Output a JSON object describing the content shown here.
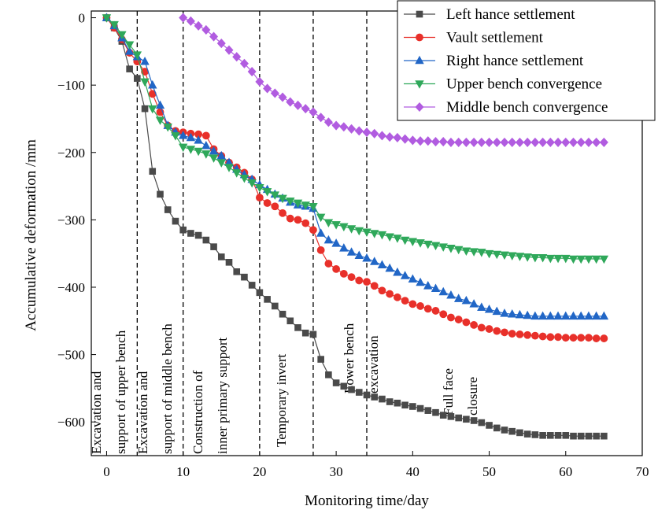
{
  "chart_data": {
    "type": "line",
    "xlabel": "Monitoring time/day",
    "ylabel": "Accumulative deformation /mm",
    "xlim": [
      -2,
      70
    ],
    "ylim": [
      -650,
      10
    ],
    "xticks": [
      0,
      10,
      20,
      30,
      40,
      50,
      60,
      70
    ],
    "yticks": [
      0,
      -100,
      -200,
      -300,
      -400,
      -500,
      -600
    ],
    "legend_position": "top-right",
    "phase_lines_x": [
      4,
      10,
      20,
      27,
      34
    ],
    "phase_labels": [
      {
        "lines": [
          "Excavation and",
          "support of upper bench"
        ]
      },
      {
        "lines": [
          "Excavation and",
          "support of middle bench"
        ]
      },
      {
        "lines": [
          "Construction of",
          "inner primary support"
        ]
      },
      {
        "lines": [
          "Temporary invert"
        ]
      },
      {
        "lines": [
          "Lower bench",
          "excavation"
        ]
      },
      {
        "lines": [
          "Full face",
          "closure"
        ]
      }
    ],
    "series": [
      {
        "name": "Left hance settlement",
        "color": "#4a4a4a",
        "marker": "square",
        "x": [
          0,
          1,
          2,
          3,
          4,
          5,
          6,
          7,
          8,
          9,
          10,
          11,
          12,
          13,
          14,
          15,
          16,
          17,
          18,
          19,
          20,
          21,
          22,
          23,
          24,
          25,
          26,
          27,
          28,
          29,
          30,
          31,
          32,
          33,
          34,
          35,
          36,
          37,
          38,
          39,
          40,
          41,
          42,
          43,
          44,
          45,
          46,
          47,
          48,
          49,
          50,
          51,
          52,
          53,
          54,
          55,
          56,
          57,
          58,
          59,
          60,
          61,
          62,
          63,
          64,
          65
        ],
        "y": [
          0,
          -15,
          -35,
          -76,
          -90,
          -135,
          -228,
          -262,
          -285,
          -302,
          -315,
          -320,
          -323,
          -330,
          -340,
          -355,
          -363,
          -377,
          -385,
          -397,
          -408,
          -418,
          -428,
          -440,
          -450,
          -460,
          -468,
          -470,
          -507,
          -530,
          -542,
          -547,
          -552,
          -556,
          -560,
          -563,
          -566,
          -570,
          -572,
          -575,
          -577,
          -580,
          -583,
          -586,
          -590,
          -592,
          -594,
          -596,
          -598,
          -601,
          -605,
          -609,
          -612,
          -614,
          -616,
          -618,
          -619,
          -620,
          -620,
          -620,
          -620,
          -621,
          -621,
          -621,
          -621,
          -621
        ]
      },
      {
        "name": "Vault settlement",
        "color": "#e8302a",
        "marker": "circle",
        "x": [
          0,
          1,
          2,
          3,
          4,
          5,
          6,
          7,
          8,
          9,
          10,
          11,
          12,
          13,
          14,
          15,
          16,
          17,
          18,
          19,
          20,
          21,
          22,
          23,
          24,
          25,
          26,
          27,
          28,
          29,
          30,
          31,
          32,
          33,
          34,
          35,
          36,
          37,
          38,
          39,
          40,
          41,
          42,
          43,
          44,
          45,
          46,
          47,
          48,
          49,
          50,
          51,
          52,
          53,
          54,
          55,
          56,
          57,
          58,
          59,
          60,
          61,
          62,
          63,
          64,
          65
        ],
        "y": [
          0,
          -15,
          -32,
          -52,
          -65,
          -80,
          -113,
          -140,
          -160,
          -168,
          -170,
          -172,
          -173,
          -175,
          -195,
          -205,
          -215,
          -222,
          -230,
          -240,
          -267,
          -275,
          -280,
          -290,
          -298,
          -300,
          -305,
          -315,
          -345,
          -365,
          -373,
          -380,
          -385,
          -390,
          -392,
          -398,
          -405,
          -410,
          -415,
          -420,
          -425,
          -428,
          -432,
          -435,
          -440,
          -445,
          -448,
          -452,
          -456,
          -460,
          -462,
          -465,
          -467,
          -469,
          -470,
          -471,
          -472,
          -473,
          -474,
          -474,
          -475,
          -475,
          -475,
          -475,
          -476,
          -476
        ]
      },
      {
        "name": "Right hance settlement",
        "color": "#2166c6",
        "marker": "triangle-up",
        "x": [
          0,
          1,
          2,
          3,
          4,
          5,
          6,
          7,
          8,
          9,
          10,
          11,
          12,
          13,
          14,
          15,
          16,
          17,
          18,
          19,
          20,
          21,
          22,
          23,
          24,
          25,
          26,
          27,
          28,
          29,
          30,
          31,
          32,
          33,
          34,
          35,
          36,
          37,
          38,
          39,
          40,
          41,
          42,
          43,
          44,
          45,
          46,
          47,
          48,
          49,
          50,
          51,
          52,
          53,
          54,
          55,
          56,
          57,
          58,
          59,
          60,
          61,
          62,
          63,
          64,
          65
        ],
        "y": [
          0,
          -12,
          -30,
          -50,
          -58,
          -65,
          -100,
          -130,
          -160,
          -170,
          -175,
          -178,
          -182,
          -190,
          -198,
          -205,
          -215,
          -225,
          -233,
          -240,
          -248,
          -255,
          -262,
          -268,
          -274,
          -278,
          -280,
          -283,
          -320,
          -330,
          -335,
          -342,
          -348,
          -353,
          -357,
          -362,
          -367,
          -372,
          -378,
          -383,
          -388,
          -393,
          -398,
          -402,
          -407,
          -412,
          -417,
          -420,
          -425,
          -430,
          -433,
          -436,
          -439,
          -440,
          -441,
          -442,
          -443,
          -443,
          -443,
          -443,
          -443,
          -443,
          -443,
          -443,
          -443,
          -443
        ]
      },
      {
        "name": "Upper bench convergence",
        "color": "#2fa85a",
        "marker": "triangle-down",
        "x": [
          0,
          1,
          2,
          3,
          4,
          5,
          6,
          7,
          8,
          9,
          10,
          11,
          12,
          13,
          14,
          15,
          16,
          17,
          18,
          19,
          20,
          21,
          22,
          23,
          24,
          25,
          26,
          27,
          28,
          29,
          30,
          31,
          32,
          33,
          34,
          35,
          36,
          37,
          38,
          39,
          40,
          41,
          42,
          43,
          44,
          45,
          46,
          47,
          48,
          49,
          50,
          51,
          52,
          53,
          54,
          55,
          56,
          57,
          58,
          59,
          60,
          61,
          62,
          63,
          64,
          65
        ],
        "y": [
          0,
          -10,
          -25,
          -40,
          -55,
          -95,
          -135,
          -152,
          -162,
          -175,
          -192,
          -195,
          -198,
          -202,
          -208,
          -215,
          -222,
          -230,
          -238,
          -245,
          -252,
          -258,
          -263,
          -268,
          -272,
          -275,
          -278,
          -280,
          -296,
          -304,
          -307,
          -310,
          -313,
          -316,
          -318,
          -320,
          -322,
          -325,
          -327,
          -330,
          -332,
          -334,
          -336,
          -338,
          -340,
          -342,
          -344,
          -346,
          -347,
          -348,
          -350,
          -351,
          -352,
          -353,
          -354,
          -355,
          -356,
          -356,
          -357,
          -357,
          -357,
          -358,
          -358,
          -358,
          -358,
          -358
        ]
      },
      {
        "name": "Middle bench convergence",
        "color": "#b15ce0",
        "marker": "diamond",
        "x": [
          10,
          11,
          12,
          13,
          14,
          15,
          16,
          17,
          18,
          19,
          20,
          21,
          22,
          23,
          24,
          25,
          26,
          27,
          28,
          29,
          30,
          31,
          32,
          33,
          34,
          35,
          36,
          37,
          38,
          39,
          40,
          41,
          42,
          43,
          44,
          45,
          46,
          47,
          48,
          49,
          50,
          51,
          52,
          53,
          54,
          55,
          56,
          57,
          58,
          59,
          60,
          61,
          62,
          63,
          64,
          65
        ],
        "y": [
          0,
          -5,
          -12,
          -18,
          -28,
          -38,
          -48,
          -58,
          -68,
          -80,
          -95,
          -105,
          -112,
          -118,
          -125,
          -130,
          -135,
          -140,
          -148,
          -155,
          -160,
          -162,
          -165,
          -168,
          -170,
          -172,
          -175,
          -177,
          -178,
          -180,
          -182,
          -183,
          -183,
          -184,
          -184,
          -185,
          -185,
          -185,
          -185,
          -185,
          -185,
          -185,
          -185,
          -185,
          -185,
          -185,
          -185,
          -185,
          -185,
          -185,
          -185,
          -185,
          -185,
          -185,
          -185,
          -185
        ]
      }
    ]
  }
}
